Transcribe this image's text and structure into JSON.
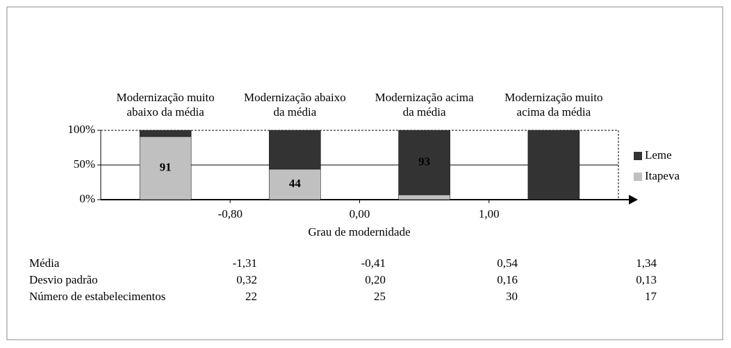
{
  "chart_data": {
    "type": "stacked_bar_100",
    "categories": [
      "Modernização muito abaixo da média",
      "Modernização abaixo da média",
      "Modernização acima da média",
      "Modernização muito acima da média"
    ],
    "series": [
      {
        "name": "Itapeva",
        "color": "#c0c0c0",
        "values": [
          91,
          44,
          7,
          0
        ],
        "value_labels": [
          "91",
          "44",
          null,
          null
        ]
      },
      {
        "name": "Leme",
        "color": "#333333",
        "values": [
          9,
          56,
          93,
          100
        ],
        "value_labels": [
          null,
          null,
          "93",
          null
        ]
      }
    ],
    "ylim": [
      0,
      100
    ],
    "yticks": [
      {
        "value": 0,
        "label": "0%"
      },
      {
        "value": 50,
        "label": "50%"
      },
      {
        "value": 100,
        "label": "100%"
      }
    ],
    "xlabel": "Grau de modernidade",
    "xticks": [
      {
        "value": -0.8,
        "label": "-0,80"
      },
      {
        "value": 0,
        "label": "0,00"
      },
      {
        "value": 1,
        "label": "1,00"
      }
    ],
    "grid": true,
    "legend": "right"
  },
  "table": {
    "rows": [
      [
        "Média",
        "-1,31",
        "-0,41",
        "0,54",
        "1,34"
      ],
      [
        "Desvio padrão",
        "0,32",
        "0,20",
        "0,16",
        "0,13"
      ],
      [
        "Número de estabelecimentos",
        "22",
        "25",
        "30",
        "17"
      ]
    ]
  }
}
